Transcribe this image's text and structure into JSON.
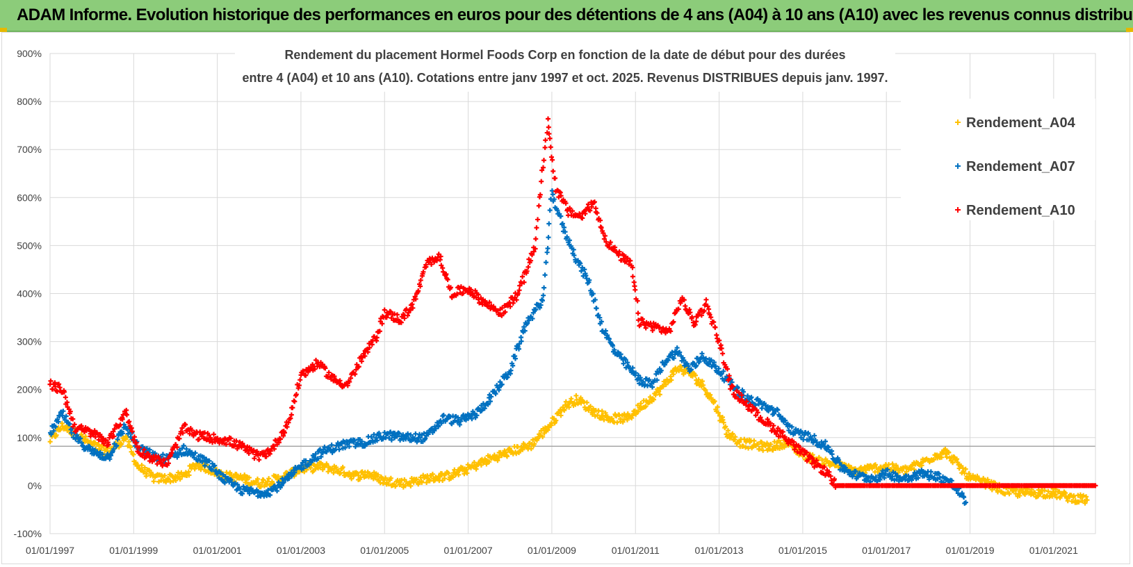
{
  "banner": {
    "title": "ADAM Informe. Evolution historique des performances en euros pour des détentions de 4 ans (A04) à 10 ans (A10) avec les revenus connus distribués"
  },
  "colors": {
    "banner_bg": "#8ccc7a",
    "A04": "#ffc000",
    "A07": "#0070c0",
    "A10": "#ff0000",
    "grid": "#d9d9d9"
  },
  "chart_data": {
    "type": "scatter",
    "title_line1": "Rendement du placement Hormel Foods Corp en fonction de la date de début pour des durées",
    "title_line2": "entre 4 (A04) et 10 ans (A10). Cotations entre janv 1997 et oct. 2025. Revenus DISTRIBUES depuis janv. 1997.",
    "xlabel": "",
    "ylabel": "",
    "x_range": [
      1997.0,
      2022.0
    ],
    "x_ticks": [
      {
        "value": 1997,
        "label": "01/01/1997"
      },
      {
        "value": 1999,
        "label": "01/01/1999"
      },
      {
        "value": 2001,
        "label": "01/01/2001"
      },
      {
        "value": 2003,
        "label": "01/01/2003"
      },
      {
        "value": 2005,
        "label": "01/01/2005"
      },
      {
        "value": 2007,
        "label": "01/01/2007"
      },
      {
        "value": 2009,
        "label": "01/01/2009"
      },
      {
        "value": 2011,
        "label": "01/01/2011"
      },
      {
        "value": 2013,
        "label": "01/01/2013"
      },
      {
        "value": 2015,
        "label": "01/01/2015"
      },
      {
        "value": 2017,
        "label": "01/01/2017"
      },
      {
        "value": 2019,
        "label": "01/01/2019"
      },
      {
        "value": 2021,
        "label": "01/01/2021"
      }
    ],
    "ylim": [
      -100,
      900
    ],
    "y_ticks": [
      {
        "value": -100,
        "label": "-100%"
      },
      {
        "value": 0,
        "label": "0%"
      },
      {
        "value": 100,
        "label": "100%"
      },
      {
        "value": 200,
        "label": "200%"
      },
      {
        "value": 300,
        "label": "300%"
      },
      {
        "value": 400,
        "label": "400%"
      },
      {
        "value": 500,
        "label": "500%"
      },
      {
        "value": 600,
        "label": "600%"
      },
      {
        "value": 700,
        "label": "700%"
      },
      {
        "value": 800,
        "label": "800%"
      },
      {
        "value": 900,
        "label": "900%"
      }
    ],
    "grid": true,
    "reference_line_value": 82,
    "legend_position": "top-right",
    "marker": "+",
    "series": [
      {
        "name": "Rendement_A04",
        "color": "#ffc000",
        "points": [
          [
            1997.0,
            95
          ],
          [
            1997.3,
            125
          ],
          [
            1997.6,
            110
          ],
          [
            1998.0,
            85
          ],
          [
            1998.4,
            70
          ],
          [
            1998.8,
            100
          ],
          [
            1999.1,
            40
          ],
          [
            1999.5,
            15
          ],
          [
            1999.8,
            15
          ],
          [
            2000.2,
            20
          ],
          [
            2000.5,
            45
          ],
          [
            2000.8,
            35
          ],
          [
            2001.2,
            20
          ],
          [
            2001.6,
            15
          ],
          [
            2002.0,
            5
          ],
          [
            2002.5,
            15
          ],
          [
            2003.0,
            35
          ],
          [
            2003.5,
            40
          ],
          [
            2004.0,
            30
          ],
          [
            2004.3,
            20
          ],
          [
            2004.6,
            25
          ],
          [
            2005.0,
            10
          ],
          [
            2005.5,
            5
          ],
          [
            2006.0,
            15
          ],
          [
            2006.5,
            20
          ],
          [
            2007.0,
            35
          ],
          [
            2007.5,
            55
          ],
          [
            2008.0,
            70
          ],
          [
            2008.5,
            85
          ],
          [
            2009.0,
            130
          ],
          [
            2009.3,
            165
          ],
          [
            2009.6,
            180
          ],
          [
            2010.0,
            155
          ],
          [
            2010.4,
            140
          ],
          [
            2010.8,
            140
          ],
          [
            2011.2,
            170
          ],
          [
            2011.6,
            200
          ],
          [
            2012.0,
            245
          ],
          [
            2012.3,
            235
          ],
          [
            2012.6,
            210
          ],
          [
            2012.9,
            170
          ],
          [
            2013.2,
            110
          ],
          [
            2013.5,
            90
          ],
          [
            2013.8,
            85
          ],
          [
            2014.2,
            80
          ],
          [
            2014.6,
            90
          ],
          [
            2015.0,
            65
          ],
          [
            2015.4,
            50
          ],
          [
            2015.8,
            45
          ],
          [
            2016.2,
            30
          ],
          [
            2016.6,
            35
          ],
          [
            2017.0,
            40
          ],
          [
            2017.4,
            30
          ],
          [
            2017.8,
            45
          ],
          [
            2018.1,
            60
          ],
          [
            2018.4,
            70
          ],
          [
            2018.6,
            55
          ],
          [
            2019.0,
            15
          ],
          [
            2019.4,
            5
          ],
          [
            2019.8,
            -10
          ],
          [
            2020.2,
            -15
          ],
          [
            2020.6,
            -15
          ],
          [
            2021.0,
            -15
          ],
          [
            2021.4,
            -25
          ],
          [
            2021.8,
            -30
          ]
        ]
      },
      {
        "name": "Rendement_A07",
        "color": "#0070c0",
        "points": [
          [
            1997.0,
            110
          ],
          [
            1997.3,
            150
          ],
          [
            1997.6,
            100
          ],
          [
            1998.0,
            70
          ],
          [
            1998.4,
            60
          ],
          [
            1998.8,
            125
          ],
          [
            1999.1,
            80
          ],
          [
            1999.5,
            60
          ],
          [
            1999.8,
            55
          ],
          [
            2000.2,
            75
          ],
          [
            2000.5,
            60
          ],
          [
            2000.8,
            45
          ],
          [
            2001.2,
            10
          ],
          [
            2001.6,
            -10
          ],
          [
            2002.0,
            -15
          ],
          [
            2002.3,
            -10
          ],
          [
            2002.7,
            15
          ],
          [
            2003.0,
            40
          ],
          [
            2003.5,
            70
          ],
          [
            2004.0,
            85
          ],
          [
            2004.5,
            90
          ],
          [
            2005.0,
            105
          ],
          [
            2005.5,
            100
          ],
          [
            2006.0,
            100
          ],
          [
            2006.4,
            140
          ],
          [
            2006.8,
            135
          ],
          [
            2007.2,
            150
          ],
          [
            2007.6,
            190
          ],
          [
            2008.0,
            240
          ],
          [
            2008.4,
            340
          ],
          [
            2008.8,
            390
          ],
          [
            2009.0,
            610
          ],
          [
            2009.3,
            530
          ],
          [
            2009.6,
            470
          ],
          [
            2009.9,
            420
          ],
          [
            2010.2,
            330
          ],
          [
            2010.5,
            280
          ],
          [
            2010.8,
            250
          ],
          [
            2011.1,
            220
          ],
          [
            2011.4,
            210
          ],
          [
            2011.7,
            260
          ],
          [
            2012.0,
            280
          ],
          [
            2012.3,
            240
          ],
          [
            2012.6,
            270
          ],
          [
            2013.0,
            240
          ],
          [
            2013.3,
            210
          ],
          [
            2013.7,
            180
          ],
          [
            2014.0,
            170
          ],
          [
            2014.4,
            150
          ],
          [
            2014.8,
            110
          ],
          [
            2015.2,
            100
          ],
          [
            2015.6,
            80
          ],
          [
            2015.9,
            40
          ],
          [
            2016.3,
            20
          ],
          [
            2016.7,
            15
          ],
          [
            2017.0,
            25
          ],
          [
            2017.4,
            15
          ],
          [
            2017.8,
            25
          ],
          [
            2018.2,
            20
          ],
          [
            2018.5,
            10
          ],
          [
            2018.8,
            -20
          ],
          [
            2018.9,
            -35
          ]
        ]
      },
      {
        "name": "Rendement_A10",
        "color": "#ff0000",
        "points": [
          [
            1997.0,
            210
          ],
          [
            1997.3,
            200
          ],
          [
            1997.6,
            120
          ],
          [
            1998.0,
            110
          ],
          [
            1998.4,
            90
          ],
          [
            1998.8,
            155
          ],
          [
            1999.1,
            75
          ],
          [
            1999.5,
            55
          ],
          [
            1999.8,
            45
          ],
          [
            2000.2,
            120
          ],
          [
            2000.5,
            105
          ],
          [
            2000.8,
            100
          ],
          [
            2001.2,
            95
          ],
          [
            2001.6,
            80
          ],
          [
            2002.0,
            60
          ],
          [
            2002.3,
            75
          ],
          [
            2002.7,
            130
          ],
          [
            2003.0,
            230
          ],
          [
            2003.4,
            255
          ],
          [
            2003.8,
            220
          ],
          [
            2004.1,
            210
          ],
          [
            2004.5,
            270
          ],
          [
            2004.8,
            310
          ],
          [
            2005.0,
            360
          ],
          [
            2005.4,
            345
          ],
          [
            2005.7,
            380
          ],
          [
            2006.0,
            460
          ],
          [
            2006.3,
            480
          ],
          [
            2006.6,
            400
          ],
          [
            2007.0,
            410
          ],
          [
            2007.4,
            380
          ],
          [
            2007.8,
            360
          ],
          [
            2008.2,
            400
          ],
          [
            2008.6,
            500
          ],
          [
            2008.9,
            760
          ],
          [
            2009.1,
            620
          ],
          [
            2009.4,
            570
          ],
          [
            2009.7,
            560
          ],
          [
            2010.0,
            590
          ],
          [
            2010.3,
            510
          ],
          [
            2010.6,
            480
          ],
          [
            2010.9,
            460
          ],
          [
            2011.1,
            340
          ],
          [
            2011.5,
            330
          ],
          [
            2011.8,
            320
          ],
          [
            2012.1,
            390
          ],
          [
            2012.4,
            340
          ],
          [
            2012.7,
            380
          ],
          [
            2013.0,
            300
          ],
          [
            2013.3,
            200
          ],
          [
            2013.6,
            175
          ],
          [
            2014.0,
            140
          ],
          [
            2014.3,
            120
          ],
          [
            2014.6,
            100
          ],
          [
            2014.9,
            75
          ],
          [
            2015.3,
            45
          ],
          [
            2015.6,
            25
          ],
          [
            2015.8,
            0
          ],
          [
            2016.5,
            0
          ],
          [
            2017.5,
            0
          ],
          [
            2018.5,
            0
          ],
          [
            2019.5,
            0
          ],
          [
            2020.5,
            0
          ],
          [
            2021.5,
            0
          ],
          [
            2022.0,
            0
          ]
        ]
      }
    ]
  }
}
